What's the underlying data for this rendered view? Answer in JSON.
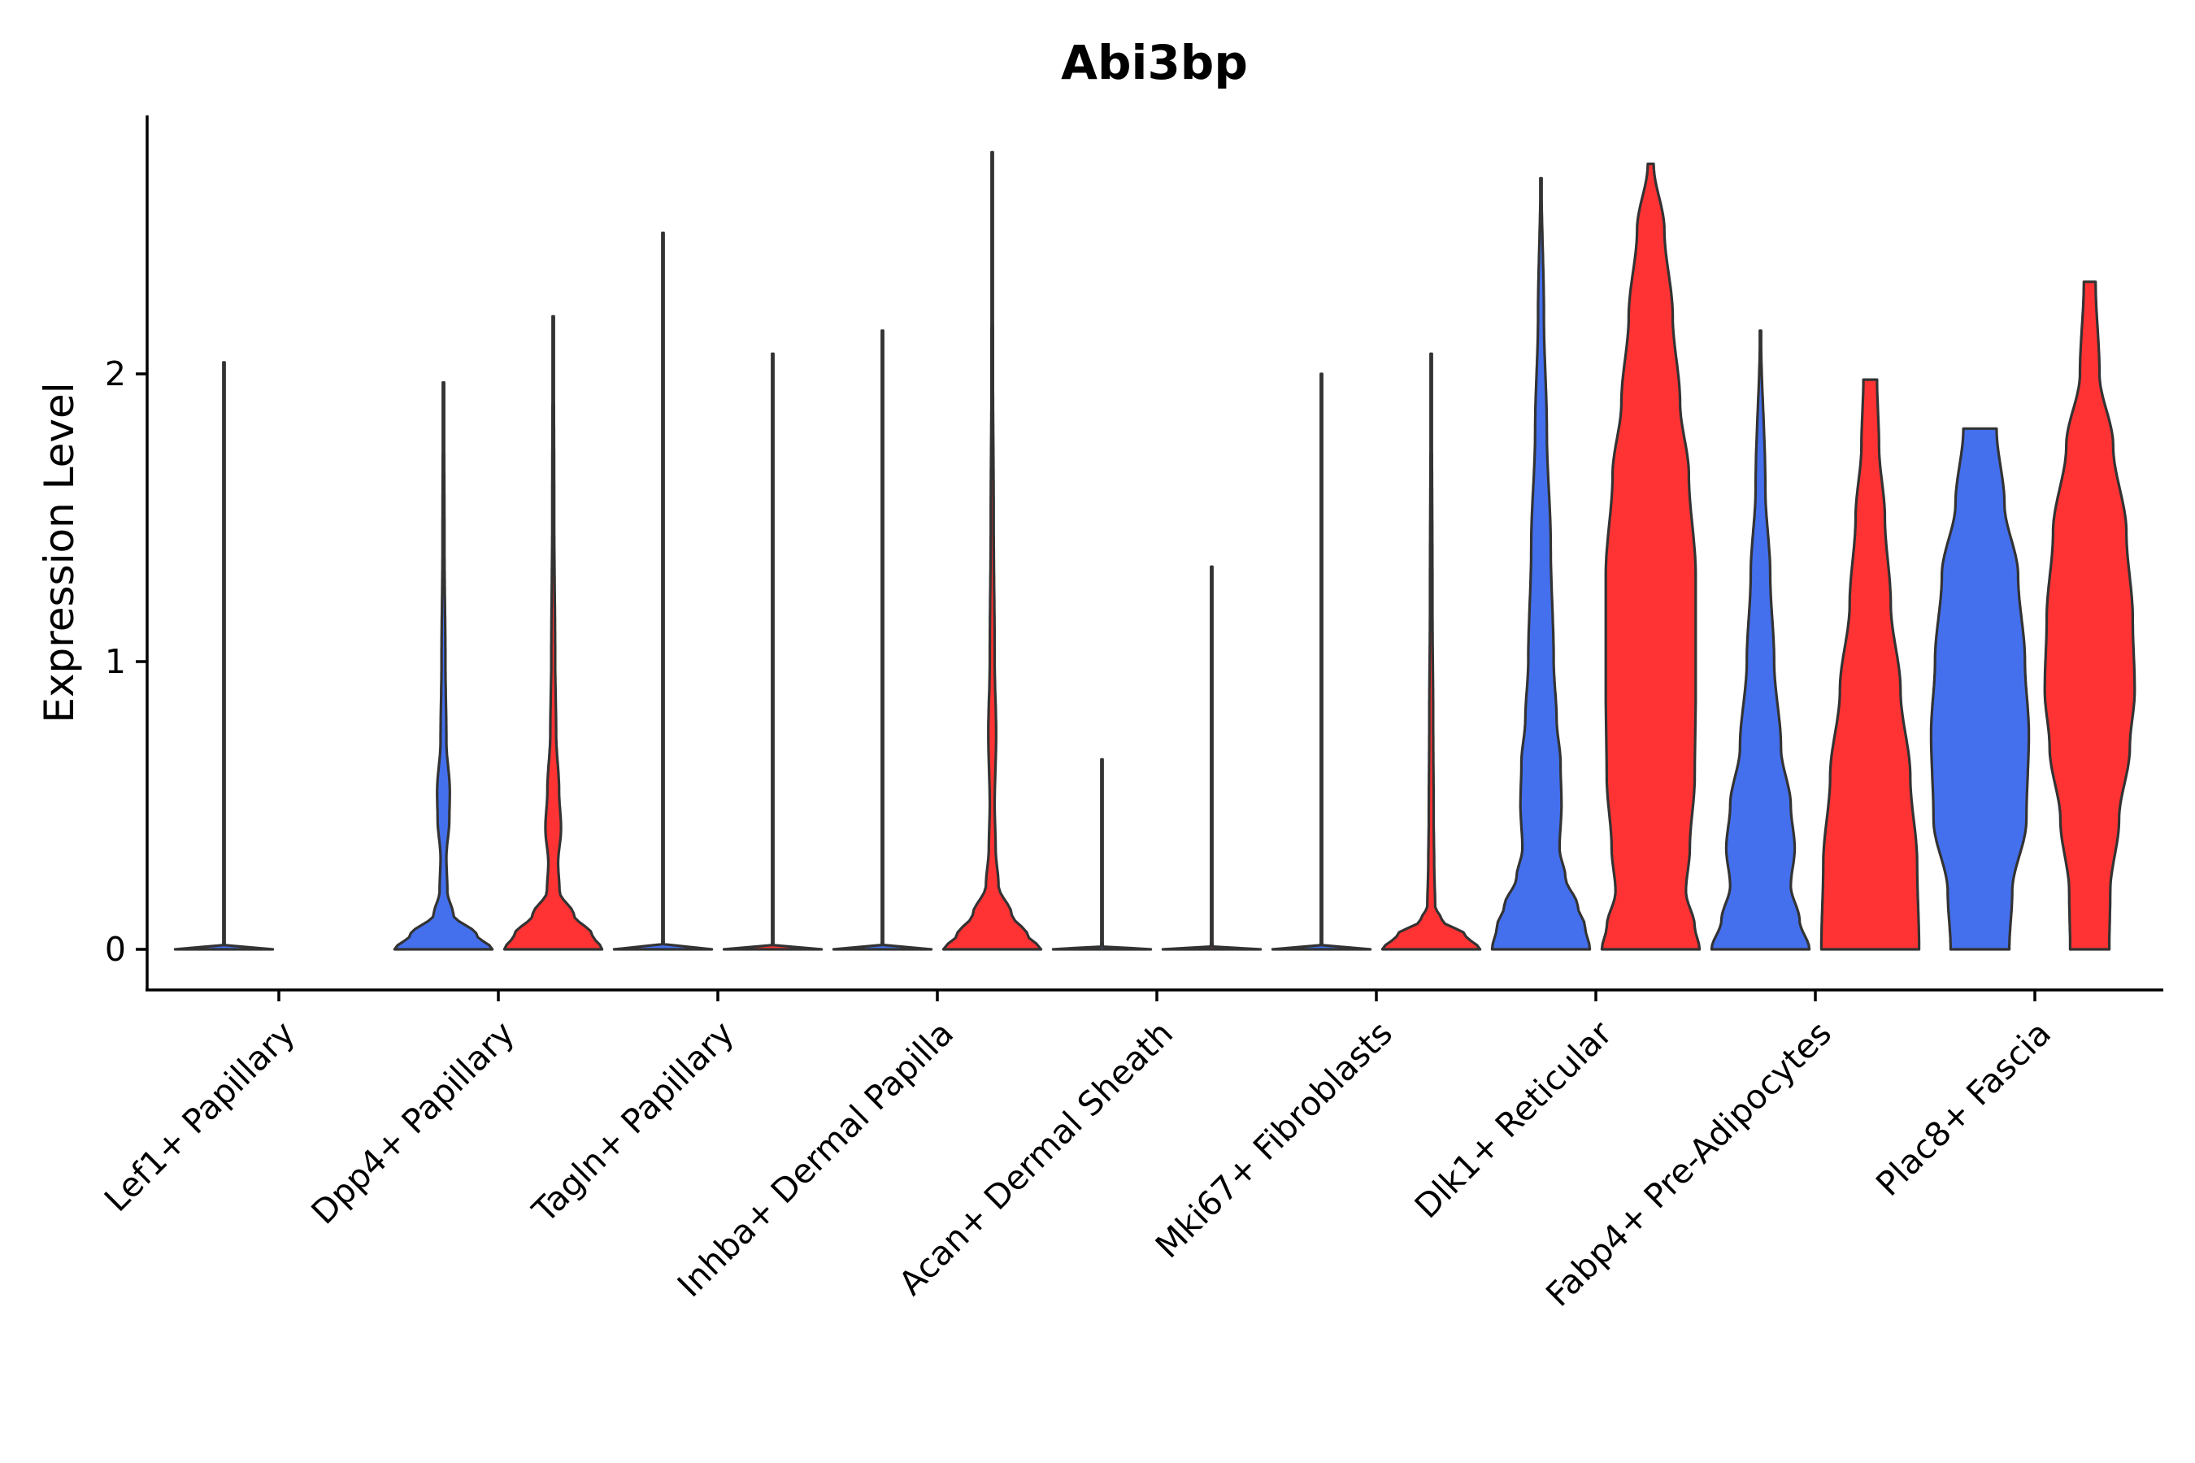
{
  "chart_data": {
    "type": "violin",
    "title": "Abi3bp",
    "xlabel": "",
    "ylabel": "Expression Level",
    "ylim": [
      -0.14,
      2.9
    ],
    "yticks": [
      0,
      1,
      2
    ],
    "grid": false,
    "legend": "none",
    "series": [
      {
        "name": "group 1",
        "color": "#4470EE"
      },
      {
        "name": "group 2",
        "color": "#FF3333"
      }
    ],
    "categories": [
      "Lef1+ Papillary",
      "Dpp4+ Papillary",
      "Tagln+ Papillary",
      "Inhba+ Dermal Papilla",
      "Acan+ Dermal Sheath",
      "Mki67+ Fibroblasts",
      "Dlk1+ Reticular",
      "Fabp4+ Pre-Adipocytes",
      "Plac8+ Fascia"
    ],
    "violins": [
      {
        "category": 0,
        "series": 0,
        "max": 2.04,
        "width": 0.45,
        "profile": [
          [
            0,
            1.0
          ],
          [
            0.01,
            0.015
          ],
          [
            0.05,
            0.01
          ],
          [
            1.0,
            0.008
          ],
          [
            2.04,
            0.008
          ]
        ]
      },
      {
        "category": 1,
        "series": 0,
        "max": 1.97,
        "width": 0.45,
        "profile": [
          [
            0,
            1.0
          ],
          [
            0.05,
            0.68
          ],
          [
            0.12,
            0.2
          ],
          [
            0.2,
            0.08
          ],
          [
            0.32,
            0.06
          ],
          [
            0.45,
            0.12
          ],
          [
            0.55,
            0.13
          ],
          [
            0.72,
            0.06
          ],
          [
            1.0,
            0.04
          ],
          [
            1.4,
            0.02
          ],
          [
            1.97,
            0.01
          ]
        ]
      },
      {
        "category": 1,
        "series": 1,
        "max": 2.2,
        "width": 0.45,
        "profile": [
          [
            0,
            1.0
          ],
          [
            0.05,
            0.8
          ],
          [
            0.12,
            0.42
          ],
          [
            0.2,
            0.13
          ],
          [
            0.3,
            0.1
          ],
          [
            0.42,
            0.16
          ],
          [
            0.55,
            0.12
          ],
          [
            0.75,
            0.06
          ],
          [
            1.0,
            0.04
          ],
          [
            1.5,
            0.02
          ],
          [
            2.2,
            0.01
          ]
        ]
      },
      {
        "category": 2,
        "series": 0,
        "max": 2.49,
        "width": 0.45,
        "profile": [
          [
            0,
            1.0
          ],
          [
            0.01,
            0.015
          ],
          [
            0.05,
            0.01
          ],
          [
            1.0,
            0.008
          ],
          [
            2.49,
            0.008
          ]
        ]
      },
      {
        "category": 2,
        "series": 1,
        "max": 2.07,
        "width": 0.45,
        "profile": [
          [
            0,
            1.0
          ],
          [
            0.01,
            0.015
          ],
          [
            0.05,
            0.01
          ],
          [
            1.0,
            0.008
          ],
          [
            2.07,
            0.008
          ]
        ]
      },
      {
        "category": 3,
        "series": 0,
        "max": 2.15,
        "width": 0.45,
        "profile": [
          [
            0,
            1.0
          ],
          [
            0.01,
            0.015
          ],
          [
            0.05,
            0.01
          ],
          [
            1.0,
            0.008
          ],
          [
            2.15,
            0.008
          ]
        ]
      },
      {
        "category": 3,
        "series": 1,
        "max": 2.77,
        "width": 0.45,
        "profile": [
          [
            0,
            1.0
          ],
          [
            0.05,
            0.72
          ],
          [
            0.12,
            0.4
          ],
          [
            0.22,
            0.13
          ],
          [
            0.35,
            0.07
          ],
          [
            0.5,
            0.05
          ],
          [
            0.75,
            0.08
          ],
          [
            1.0,
            0.05
          ],
          [
            1.5,
            0.03
          ],
          [
            2.0,
            0.015
          ],
          [
            2.77,
            0.008
          ]
        ]
      },
      {
        "category": 4,
        "series": 0,
        "max": 0.66,
        "width": 0.45,
        "profile": [
          [
            0,
            1.0
          ],
          [
            0.01,
            0.015
          ],
          [
            0.05,
            0.01
          ],
          [
            0.66,
            0.008
          ]
        ]
      },
      {
        "category": 4,
        "series": 1,
        "max": 1.33,
        "width": 0.45,
        "profile": [
          [
            0,
            1.0
          ],
          [
            0.01,
            0.015
          ],
          [
            0.05,
            0.01
          ],
          [
            1.33,
            0.008
          ]
        ]
      },
      {
        "category": 5,
        "series": 0,
        "max": 2.0,
        "width": 0.45,
        "profile": [
          [
            0,
            1.0
          ],
          [
            0.01,
            0.015
          ],
          [
            0.05,
            0.01
          ],
          [
            1.0,
            0.008
          ],
          [
            2.0,
            0.008
          ]
        ]
      },
      {
        "category": 5,
        "series": 1,
        "max": 2.07,
        "width": 0.45,
        "profile": [
          [
            0,
            1.0
          ],
          [
            0.05,
            0.7
          ],
          [
            0.1,
            0.22
          ],
          [
            0.15,
            0.08
          ],
          [
            0.3,
            0.06
          ],
          [
            0.45,
            0.05
          ],
          [
            0.8,
            0.04
          ],
          [
            1.2,
            0.025
          ],
          [
            2.07,
            0.008
          ]
        ]
      },
      {
        "category": 6,
        "series": 0,
        "max": 2.68,
        "width": 0.45,
        "profile": [
          [
            0,
            1.0
          ],
          [
            0.08,
            0.9
          ],
          [
            0.15,
            0.75
          ],
          [
            0.25,
            0.5
          ],
          [
            0.35,
            0.38
          ],
          [
            0.5,
            0.42
          ],
          [
            0.65,
            0.4
          ],
          [
            0.8,
            0.32
          ],
          [
            1.0,
            0.26
          ],
          [
            1.4,
            0.2
          ],
          [
            1.8,
            0.12
          ],
          [
            2.2,
            0.06
          ],
          [
            2.68,
            0.01
          ]
        ]
      },
      {
        "category": 6,
        "series": 1,
        "max": 2.73,
        "width": 0.45,
        "profile": [
          [
            0,
            1.0
          ],
          [
            0.08,
            0.9
          ],
          [
            0.2,
            0.72
          ],
          [
            0.35,
            0.8
          ],
          [
            0.6,
            0.9
          ],
          [
            0.9,
            0.92
          ],
          [
            1.3,
            0.92
          ],
          [
            1.65,
            0.78
          ],
          [
            1.9,
            0.6
          ],
          [
            2.2,
            0.45
          ],
          [
            2.5,
            0.28
          ],
          [
            2.73,
            0.06
          ]
        ]
      },
      {
        "category": 7,
        "series": 0,
        "max": 2.15,
        "width": 0.45,
        "profile": [
          [
            0,
            1.0
          ],
          [
            0.1,
            0.8
          ],
          [
            0.22,
            0.62
          ],
          [
            0.35,
            0.7
          ],
          [
            0.5,
            0.62
          ],
          [
            0.7,
            0.42
          ],
          [
            1.0,
            0.28
          ],
          [
            1.3,
            0.2
          ],
          [
            1.6,
            0.1
          ],
          [
            2.15,
            0.01
          ]
        ]
      },
      {
        "category": 7,
        "series": 1,
        "max": 1.98,
        "width": 0.45,
        "profile": [
          [
            0,
            1.0
          ],
          [
            0.3,
            0.96
          ],
          [
            0.6,
            0.82
          ],
          [
            0.9,
            0.62
          ],
          [
            1.2,
            0.42
          ],
          [
            1.5,
            0.3
          ],
          [
            1.75,
            0.18
          ],
          [
            1.98,
            0.14
          ]
        ]
      },
      {
        "category": 8,
        "series": 0,
        "max": 1.81,
        "width": 0.45,
        "profile": [
          [
            0,
            0.6
          ],
          [
            0.2,
            0.66
          ],
          [
            0.45,
            0.95
          ],
          [
            0.75,
            1.0
          ],
          [
            1.0,
            0.92
          ],
          [
            1.3,
            0.78
          ],
          [
            1.55,
            0.5
          ],
          [
            1.81,
            0.34
          ]
        ]
      },
      {
        "category": 8,
        "series": 1,
        "max": 2.32,
        "width": 0.45,
        "profile": [
          [
            0,
            0.4
          ],
          [
            0.2,
            0.42
          ],
          [
            0.45,
            0.6
          ],
          [
            0.7,
            0.82
          ],
          [
            0.9,
            0.92
          ],
          [
            1.15,
            0.88
          ],
          [
            1.45,
            0.75
          ],
          [
            1.75,
            0.48
          ],
          [
            2.0,
            0.2
          ],
          [
            2.32,
            0.12
          ]
        ]
      }
    ]
  }
}
